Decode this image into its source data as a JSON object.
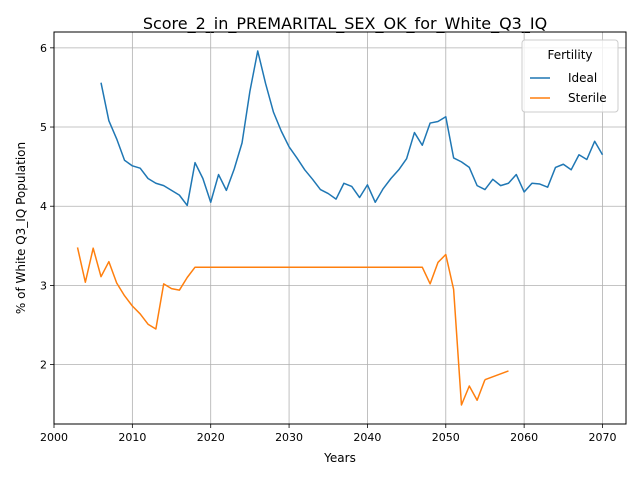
{
  "chart_data": {
    "type": "line",
    "title": "Score_2_in_PREMARITAL_SEX_OK_for_White_Q3_IQ",
    "xlabel": "Years",
    "ylabel": "% of White Q3_IQ Population",
    "xlim": [
      2000,
      2073
    ],
    "ylim": [
      1.25,
      6.2
    ],
    "xticks": [
      2000,
      2010,
      2020,
      2030,
      2040,
      2050,
      2060,
      2070
    ],
    "yticks": [
      2,
      3,
      4,
      5,
      6
    ],
    "grid": true,
    "legend": {
      "title": "Fertility",
      "placement": "top-right"
    },
    "series": [
      {
        "name": "Ideal",
        "color": "#1f77b4",
        "x": [
          2006,
          2007,
          2008,
          2009,
          2010,
          2011,
          2012,
          2013,
          2014,
          2015,
          2016,
          2017,
          2018,
          2019,
          2020,
          2021,
          2022,
          2023,
          2024,
          2025,
          2026,
          2027,
          2028,
          2029,
          2030,
          2031,
          2032,
          2033,
          2034,
          2035,
          2036,
          2037,
          2038,
          2039,
          2040,
          2041,
          2042,
          2043,
          2044,
          2045,
          2046,
          2047,
          2048,
          2049,
          2050,
          2051,
          2052,
          2053,
          2054,
          2055,
          2056,
          2057,
          2058,
          2059,
          2060,
          2061,
          2062,
          2063,
          2064,
          2065,
          2066,
          2067,
          2068,
          2069,
          2070
        ],
        "y": [
          5.56,
          5.08,
          4.85,
          4.58,
          4.51,
          4.48,
          4.35,
          4.29,
          4.26,
          4.2,
          4.14,
          4.01,
          4.55,
          4.35,
          4.05,
          4.4,
          4.2,
          4.47,
          4.8,
          5.45,
          5.96,
          5.55,
          5.19,
          4.95,
          4.75,
          4.61,
          4.46,
          4.34,
          4.21,
          4.16,
          4.09,
          4.29,
          4.25,
          4.11,
          4.27,
          4.05,
          4.22,
          4.35,
          4.46,
          4.6,
          4.93,
          4.77,
          5.05,
          5.07,
          5.13,
          4.61,
          4.56,
          4.49,
          4.26,
          4.21,
          4.34,
          4.26,
          4.29,
          4.4,
          4.18,
          4.29,
          4.28,
          4.24,
          4.49,
          4.53,
          4.46,
          4.65,
          4.59,
          4.82,
          4.65
        ]
      },
      {
        "name": "Sterile",
        "color": "#ff7f0e",
        "segments": [
          {
            "x": [
              2003,
              2004,
              2005,
              2006,
              2007,
              2008,
              2009,
              2010,
              2011,
              2012,
              2013,
              2014,
              2015,
              2016,
              2017,
              2018,
              2019,
              2020,
              2021,
              2022,
              2023,
              2024,
              2025,
              2026,
              2027,
              2028,
              2029,
              2030,
              2031,
              2032,
              2033,
              2034,
              2035,
              2036,
              2037,
              2038,
              2039,
              2040,
              2041,
              2042,
              2043,
              2044,
              2045,
              2046,
              2047,
              2048,
              2049,
              2050,
              2051,
              2052,
              2053,
              2054,
              2055
            ],
            "y": [
              3.48,
              3.04,
              3.47,
              3.11,
              3.3,
              3.03,
              2.87,
              2.74,
              2.64,
              2.51,
              2.45,
              3.02,
              2.96,
              2.94,
              3.1,
              3.23,
              3.23,
              3.23,
              3.23,
              3.23,
              3.23,
              3.23,
              3.23,
              3.23,
              3.23,
              3.23,
              3.23,
              3.23,
              3.23,
              3.23,
              3.23,
              3.23,
              3.23,
              3.23,
              3.23,
              3.23,
              3.23,
              3.23,
              3.23,
              3.23,
              3.23,
              3.23,
              3.23,
              3.23,
              3.23,
              3.02,
              3.29,
              3.39,
              2.95,
              1.49,
              1.73,
              1.55,
              1.81
            ]
          },
          {
            "x": [
              2055,
              2058
            ],
            "y": [
              1.81,
              1.92
            ]
          }
        ]
      }
    ]
  }
}
